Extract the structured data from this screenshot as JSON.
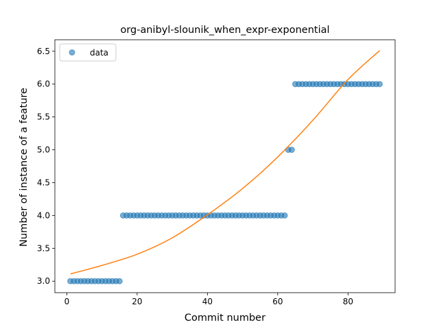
{
  "chart_data": {
    "type": "scatter",
    "title": "org-anibyl-slounik_when_expr-exponential",
    "xlabel": "Commit number",
    "ylabel": "Number of instance of a feature",
    "xlim": [
      -3.4,
      93.4
    ],
    "ylim": [
      2.825,
      6.675
    ],
    "xticks": [
      0,
      20,
      40,
      60,
      80
    ],
    "xtick_labels": [
      "0",
      "20",
      "40",
      "60",
      "80"
    ],
    "yticks": [
      3.0,
      3.5,
      4.0,
      4.5,
      5.0,
      5.5,
      6.0,
      6.5
    ],
    "ytick_labels": [
      "3.0",
      "3.5",
      "4.0",
      "4.5",
      "5.0",
      "5.5",
      "6.0",
      "6.5"
    ],
    "grid": false,
    "legend": {
      "position": "top-left",
      "entries": [
        "data"
      ]
    },
    "series": [
      {
        "name": "data",
        "kind": "scatter",
        "color": "#1f77b4",
        "x": [
          1,
          2,
          3,
          4,
          5,
          6,
          7,
          8,
          9,
          10,
          11,
          12,
          13,
          14,
          15,
          16,
          17,
          18,
          19,
          20,
          21,
          22,
          23,
          24,
          25,
          26,
          27,
          28,
          29,
          30,
          31,
          32,
          33,
          34,
          35,
          36,
          37,
          38,
          39,
          40,
          41,
          42,
          43,
          44,
          45,
          46,
          47,
          48,
          49,
          50,
          51,
          52,
          53,
          54,
          55,
          56,
          57,
          58,
          59,
          60,
          61,
          62,
          63,
          64,
          65,
          66,
          67,
          68,
          69,
          70,
          71,
          72,
          73,
          74,
          75,
          76,
          77,
          78,
          79,
          80,
          81,
          82,
          83,
          84,
          85,
          86,
          87,
          88,
          89
        ],
        "y": [
          3,
          3,
          3,
          3,
          3,
          3,
          3,
          3,
          3,
          3,
          3,
          3,
          3,
          3,
          3,
          4,
          4,
          4,
          4,
          4,
          4,
          4,
          4,
          4,
          4,
          4,
          4,
          4,
          4,
          4,
          4,
          4,
          4,
          4,
          4,
          4,
          4,
          4,
          4,
          4,
          4,
          4,
          4,
          4,
          4,
          4,
          4,
          4,
          4,
          4,
          4,
          4,
          4,
          4,
          4,
          4,
          4,
          4,
          4,
          4,
          4,
          4,
          5,
          5,
          6,
          6,
          6,
          6,
          6,
          6,
          6,
          6,
          6,
          6,
          6,
          6,
          6,
          6,
          6,
          6,
          6,
          6,
          6,
          6,
          6,
          6,
          6,
          6,
          6
        ]
      },
      {
        "kind": "line",
        "color": "#ff7f0e",
        "x": [
          1,
          10,
          20,
          30,
          40,
          50,
          60,
          70,
          80,
          89
        ],
        "y": [
          3.11,
          3.24,
          3.41,
          3.66,
          4.01,
          4.41,
          4.89,
          5.45,
          6.07,
          6.51
        ]
      }
    ]
  }
}
